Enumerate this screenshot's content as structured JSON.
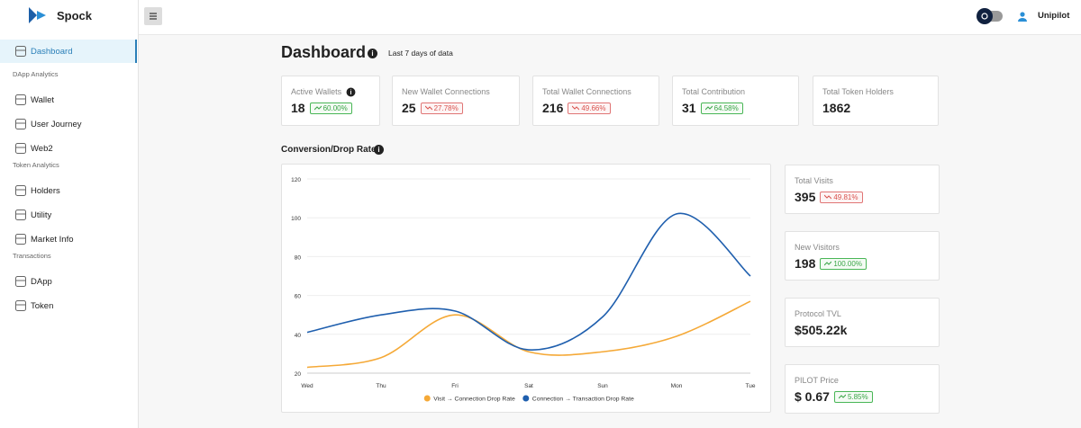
{
  "brand": "Spock",
  "user": "Unipilot",
  "sidebar": {
    "top": "Dashboard",
    "sections": [
      {
        "title": "DApp Analytics",
        "items": [
          "Wallet",
          "User Journey",
          "Web2"
        ]
      },
      {
        "title": "Token Analytics",
        "items": [
          "Holders",
          "Utility",
          "Market Info"
        ]
      },
      {
        "title": "Transactions",
        "items": [
          "DApp",
          "Token"
        ]
      }
    ]
  },
  "page": {
    "title": "Dashboard",
    "subtitle": "Last 7 days of data"
  },
  "stats": [
    {
      "label": "Active Wallets",
      "value": "18",
      "change": "60.00%",
      "trend": "up"
    },
    {
      "label": "New Wallet Connections",
      "value": "25",
      "change": "27.78%",
      "trend": "down"
    },
    {
      "label": "Total Wallet Connections",
      "value": "216",
      "change": "49.66%",
      "trend": "down"
    },
    {
      "label": "Total Contribution",
      "value": "31",
      "change": "64.58%",
      "trend": "up"
    },
    {
      "label": "Total Token Holders",
      "value": "1862"
    }
  ],
  "section_title": "Conversion/Drop Rate",
  "side_stats": [
    {
      "label": "Total Visits",
      "value": "395",
      "change": "49.81%",
      "trend": "down"
    },
    {
      "label": "New Visitors",
      "value": "198",
      "change": "100.00%",
      "trend": "up"
    },
    {
      "label": "Protocol TVL",
      "value": "$505.22k"
    },
    {
      "label": "PILOT Price",
      "value": "$ 0.67",
      "change": "5.85%",
      "trend": "up"
    }
  ],
  "chart_data": {
    "type": "line",
    "categories": [
      "Wed",
      "Thu",
      "Fri",
      "Sat",
      "Sun",
      "Mon",
      "Tue"
    ],
    "series": [
      {
        "name": "Visit → Connection Drop Rate",
        "color": "#f5a937",
        "values": [
          23,
          28,
          50,
          31,
          31,
          39,
          57
        ]
      },
      {
        "name": "Connection → Transaction Drop Rate",
        "color": "#1f5fae",
        "values": [
          41,
          50,
          52,
          32,
          49,
          102,
          70
        ]
      }
    ],
    "ylim": [
      20,
      120
    ],
    "yticks": [
      20,
      40,
      60,
      80,
      100,
      120
    ],
    "grid": true,
    "legend": "bottom"
  }
}
